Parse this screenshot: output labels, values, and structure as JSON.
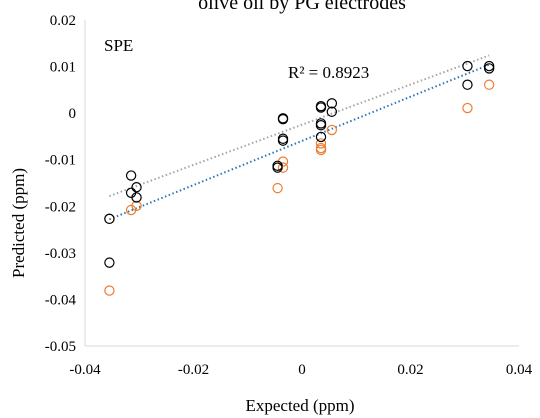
{
  "chart_data": {
    "type": "scatter",
    "title": "olive oil by PG electrodes",
    "xlabel": "Expected (ppm)",
    "ylabel": "Predicted (ppm)",
    "xlim": [
      -0.04,
      0.04
    ],
    "ylim": [
      -0.05,
      0.02
    ],
    "xticks": [
      "-0.04",
      "-0.02",
      "0",
      "0.02",
      "0.04"
    ],
    "yticks": [
      "0.02",
      "0.01",
      "0",
      "-0.01",
      "-0.02",
      "-0.03",
      "-0.04",
      "-0.05"
    ],
    "grid": false,
    "legend": "none",
    "annotations": {
      "panel_label": "SPE",
      "r_squared": "R² = 0.8923"
    },
    "colors": {
      "series_black": "#000000",
      "series_orange": "#ED7D31",
      "trend_gray": "#A5A5A5",
      "trend_blue": "#2E75B6"
    },
    "series": [
      {
        "marker": "open-circle-black",
        "points": [
          [
            -0.0355,
            -0.0227
          ],
          [
            -0.0355,
            -0.0321
          ],
          [
            -0.0315,
            -0.0134
          ],
          [
            -0.0315,
            -0.0171
          ],
          [
            -0.0305,
            -0.0159
          ],
          [
            -0.0305,
            -0.0181
          ],
          [
            -0.0045,
            -0.0117
          ],
          [
            -0.0045,
            -0.0113
          ],
          [
            -0.0035,
            -0.0011
          ],
          [
            -0.0035,
            -0.0013
          ],
          [
            -0.0035,
            -0.0055
          ],
          [
            -0.0035,
            -0.0059
          ],
          [
            0.0035,
            0.0015
          ],
          [
            0.0035,
            0.0012
          ],
          [
            0.0035,
            -0.0022
          ],
          [
            0.0035,
            -0.0026
          ],
          [
            0.0035,
            -0.0051
          ],
          [
            0.0055,
            0.0021
          ],
          [
            0.0055,
            0.0003
          ],
          [
            0.0305,
            0.0101
          ],
          [
            0.0305,
            0.0061
          ],
          [
            0.0345,
            0.0101
          ],
          [
            0.0345,
            0.0096
          ]
        ]
      },
      {
        "marker": "open-circle-orange",
        "points": [
          [
            -0.0355,
            -0.0381
          ],
          [
            -0.0355,
            -0.0227
          ],
          [
            -0.0315,
            -0.0208
          ],
          [
            -0.0305,
            -0.0199
          ],
          [
            -0.0045,
            -0.0161
          ],
          [
            -0.0035,
            -0.0117
          ],
          [
            -0.0035,
            -0.0104
          ],
          [
            0.0035,
            -0.0065
          ],
          [
            0.0035,
            -0.0075
          ],
          [
            0.0035,
            -0.0079
          ],
          [
            0.0055,
            -0.0036
          ],
          [
            0.0305,
            0.0011
          ],
          [
            0.0345,
            0.0061
          ]
        ]
      }
    ],
    "trendlines": [
      {
        "color": "gray",
        "style": "dotted",
        "x": [
          -0.0355,
          0.0345
        ],
        "y": [
          -0.0178,
          0.0124
        ]
      },
      {
        "color": "blue",
        "style": "dotted",
        "x": [
          -0.0355,
          0.0345
        ],
        "y": [
          -0.0228,
          0.0104
        ]
      }
    ]
  }
}
